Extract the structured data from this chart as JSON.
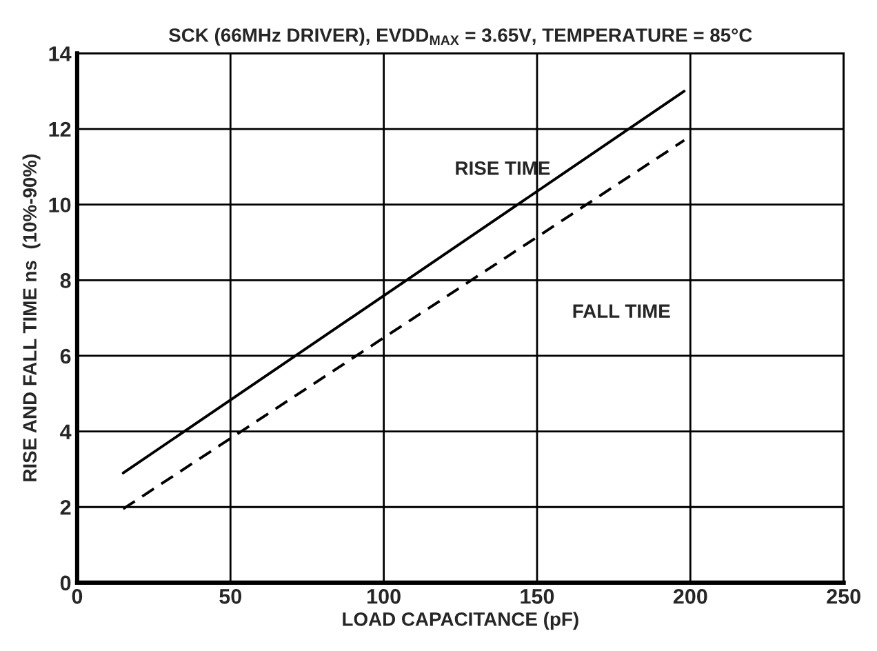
{
  "chart_data": {
    "type": "line",
    "title": "SCK (66MHz DRIVER), EVDD$_{MAX}$ = 3.65V, TEMPERATURE = 85°C",
    "xlabel": "LOAD CAPACITANCE (pF)",
    "ylabel": "RISE AND FALL TIME ns  (10%-90%)",
    "x": [
      15,
      198
    ],
    "series": [
      {
        "color": "#000000",
        "values": [
          2.9,
          13.0
        ],
        "line_style": "solid"
      },
      {
        "color": "#000000",
        "values": [
          1.95,
          11.7
        ],
        "line_style": "dashed"
      }
    ],
    "annotations": [
      "RISE TIME",
      "FALL TIME"
    ],
    "xlim": [
      0,
      250
    ],
    "xticks": [
      0,
      50,
      100,
      150,
      200,
      250
    ],
    "ylim": [
      0,
      14
    ],
    "yticks": [
      0,
      2,
      4,
      6,
      8,
      10,
      12,
      14
    ],
    "grid": true,
    "legend": false,
    "marker": "none"
  }
}
